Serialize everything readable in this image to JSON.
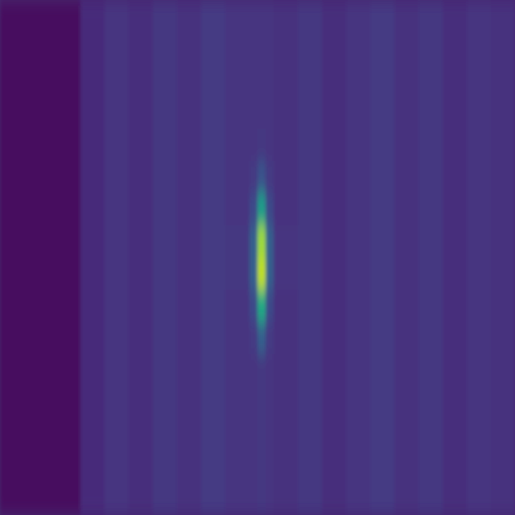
{
  "chart_data": {
    "type": "heatmap",
    "color": "viridis",
    "tick_labels": false,
    "x": [
      0,
      40,
      52,
      64,
      76,
      88,
      100,
      112,
      124,
      128,
      132,
      136,
      148,
      160,
      172,
      184,
      196,
      208,
      220,
      232,
      244,
      256
    ],
    "y": [
      0,
      16,
      32,
      48,
      64,
      80,
      96,
      112,
      128,
      144,
      160,
      176,
      192,
      208,
      224,
      240,
      256
    ],
    "xlim": [
      0,
      256
    ],
    "ylim": [
      0,
      256
    ],
    "zlim": [
      0,
      1
    ],
    "cells": [
      [
        0.03,
        0.12,
        0.15,
        0.13,
        0.16,
        0.14,
        0.17,
        0.15,
        0.15,
        0.15,
        0.15,
        0.14,
        0.16,
        0.13,
        0.15,
        0.17,
        0.14,
        0.16,
        0.13,
        0.15,
        0.14
      ],
      [
        0.03,
        0.12,
        0.15,
        0.13,
        0.16,
        0.14,
        0.17,
        0.15,
        0.15,
        0.15,
        0.15,
        0.14,
        0.16,
        0.13,
        0.15,
        0.17,
        0.14,
        0.16,
        0.13,
        0.15,
        0.14
      ],
      [
        0.03,
        0.12,
        0.15,
        0.13,
        0.16,
        0.14,
        0.17,
        0.15,
        0.15,
        0.15,
        0.15,
        0.14,
        0.16,
        0.13,
        0.15,
        0.17,
        0.14,
        0.16,
        0.13,
        0.15,
        0.14
      ],
      [
        0.03,
        0.12,
        0.15,
        0.13,
        0.16,
        0.14,
        0.17,
        0.15,
        0.15,
        0.15,
        0.15,
        0.14,
        0.16,
        0.13,
        0.15,
        0.17,
        0.14,
        0.16,
        0.13,
        0.15,
        0.14
      ],
      [
        0.03,
        0.12,
        0.15,
        0.13,
        0.16,
        0.14,
        0.17,
        0.15,
        0.15,
        0.16,
        0.15,
        0.14,
        0.16,
        0.13,
        0.15,
        0.17,
        0.14,
        0.16,
        0.13,
        0.15,
        0.14
      ],
      [
        0.03,
        0.12,
        0.15,
        0.13,
        0.16,
        0.14,
        0.17,
        0.15,
        0.17,
        0.25,
        0.17,
        0.14,
        0.16,
        0.13,
        0.15,
        0.17,
        0.14,
        0.16,
        0.13,
        0.15,
        0.14
      ],
      [
        0.03,
        0.12,
        0.15,
        0.13,
        0.16,
        0.14,
        0.17,
        0.15,
        0.22,
        0.55,
        0.22,
        0.14,
        0.16,
        0.13,
        0.15,
        0.17,
        0.14,
        0.16,
        0.13,
        0.15,
        0.14
      ],
      [
        0.03,
        0.12,
        0.15,
        0.13,
        0.16,
        0.14,
        0.17,
        0.16,
        0.3,
        0.85,
        0.3,
        0.15,
        0.16,
        0.13,
        0.15,
        0.17,
        0.14,
        0.16,
        0.13,
        0.15,
        0.14
      ],
      [
        0.03,
        0.12,
        0.15,
        0.13,
        0.16,
        0.14,
        0.17,
        0.16,
        0.3,
        0.9,
        0.3,
        0.15,
        0.16,
        0.13,
        0.15,
        0.17,
        0.14,
        0.16,
        0.13,
        0.15,
        0.14
      ],
      [
        0.03,
        0.12,
        0.15,
        0.13,
        0.16,
        0.14,
        0.17,
        0.15,
        0.22,
        0.6,
        0.22,
        0.14,
        0.16,
        0.13,
        0.15,
        0.17,
        0.14,
        0.16,
        0.13,
        0.15,
        0.14
      ],
      [
        0.03,
        0.12,
        0.15,
        0.13,
        0.16,
        0.14,
        0.17,
        0.15,
        0.17,
        0.3,
        0.17,
        0.14,
        0.16,
        0.13,
        0.15,
        0.17,
        0.14,
        0.16,
        0.13,
        0.15,
        0.14
      ],
      [
        0.03,
        0.12,
        0.15,
        0.13,
        0.16,
        0.14,
        0.17,
        0.15,
        0.15,
        0.16,
        0.15,
        0.14,
        0.16,
        0.13,
        0.15,
        0.17,
        0.14,
        0.16,
        0.13,
        0.15,
        0.14
      ],
      [
        0.03,
        0.12,
        0.15,
        0.13,
        0.16,
        0.14,
        0.17,
        0.15,
        0.15,
        0.16,
        0.15,
        0.14,
        0.16,
        0.13,
        0.15,
        0.17,
        0.14,
        0.16,
        0.13,
        0.15,
        0.14
      ],
      [
        0.03,
        0.12,
        0.15,
        0.13,
        0.16,
        0.14,
        0.17,
        0.15,
        0.15,
        0.16,
        0.15,
        0.14,
        0.16,
        0.13,
        0.15,
        0.17,
        0.14,
        0.16,
        0.13,
        0.15,
        0.14
      ],
      [
        0.03,
        0.12,
        0.15,
        0.13,
        0.16,
        0.14,
        0.17,
        0.15,
        0.15,
        0.16,
        0.15,
        0.14,
        0.16,
        0.13,
        0.15,
        0.17,
        0.14,
        0.16,
        0.13,
        0.15,
        0.14
      ],
      [
        0.03,
        0.12,
        0.15,
        0.13,
        0.16,
        0.14,
        0.17,
        0.15,
        0.15,
        0.16,
        0.15,
        0.14,
        0.16,
        0.13,
        0.15,
        0.17,
        0.14,
        0.16,
        0.13,
        0.15,
        0.14
      ]
    ]
  }
}
